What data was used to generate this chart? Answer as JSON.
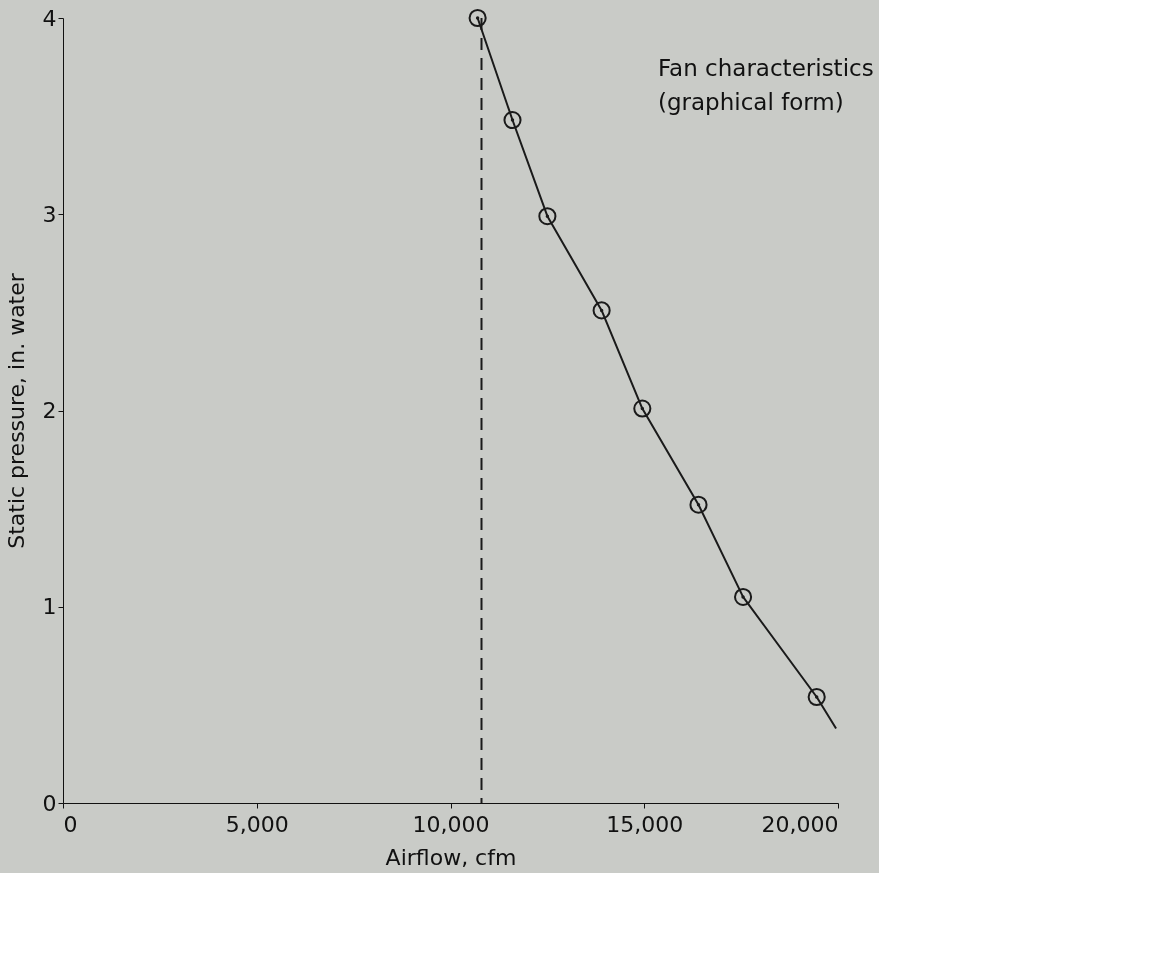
{
  "chart_data": {
    "type": "line",
    "xlabel": "Airflow, cfm",
    "ylabel": "Static pressure, in. water",
    "xlim": [
      0,
      20000
    ],
    "ylim": [
      0,
      4
    ],
    "xticks": [
      0,
      {
        "value": 5000,
        "label": "5,000"
      },
      {
        "value": 10000,
        "label": "10,000"
      },
      {
        "value": 15000,
        "label": "15,000"
      },
      {
        "value": 20000,
        "label": "20,000"
      }
    ],
    "yticks": [
      0,
      1,
      2,
      3,
      4
    ],
    "grid": false,
    "series": [
      {
        "color": "#1a1a1a",
        "marker": "none",
        "line_style": "solid",
        "x": [
          10700,
          11600,
          12500,
          13900,
          14950,
          16400,
          17550,
          19450,
          19950
        ],
        "values": [
          4.0,
          3.48,
          2.99,
          2.51,
          2.01,
          1.52,
          1.05,
          0.54,
          0.38
        ]
      },
      {
        "type": "scatter",
        "color": "#1a1a1a",
        "marker": "circle",
        "x": [
          10700,
          11600,
          12500,
          13900,
          14950,
          16400,
          17550,
          19450
        ],
        "values": [
          4.0,
          3.48,
          2.99,
          2.51,
          2.01,
          1.52,
          1.05,
          0.54
        ]
      }
    ],
    "ref_lines": [
      {
        "axis": "x",
        "value": 10800,
        "color": "#1a1a1a",
        "line_style": "dashed"
      }
    ],
    "annotations": [
      "Fan characteristics",
      "(graphical form)"
    ]
  }
}
